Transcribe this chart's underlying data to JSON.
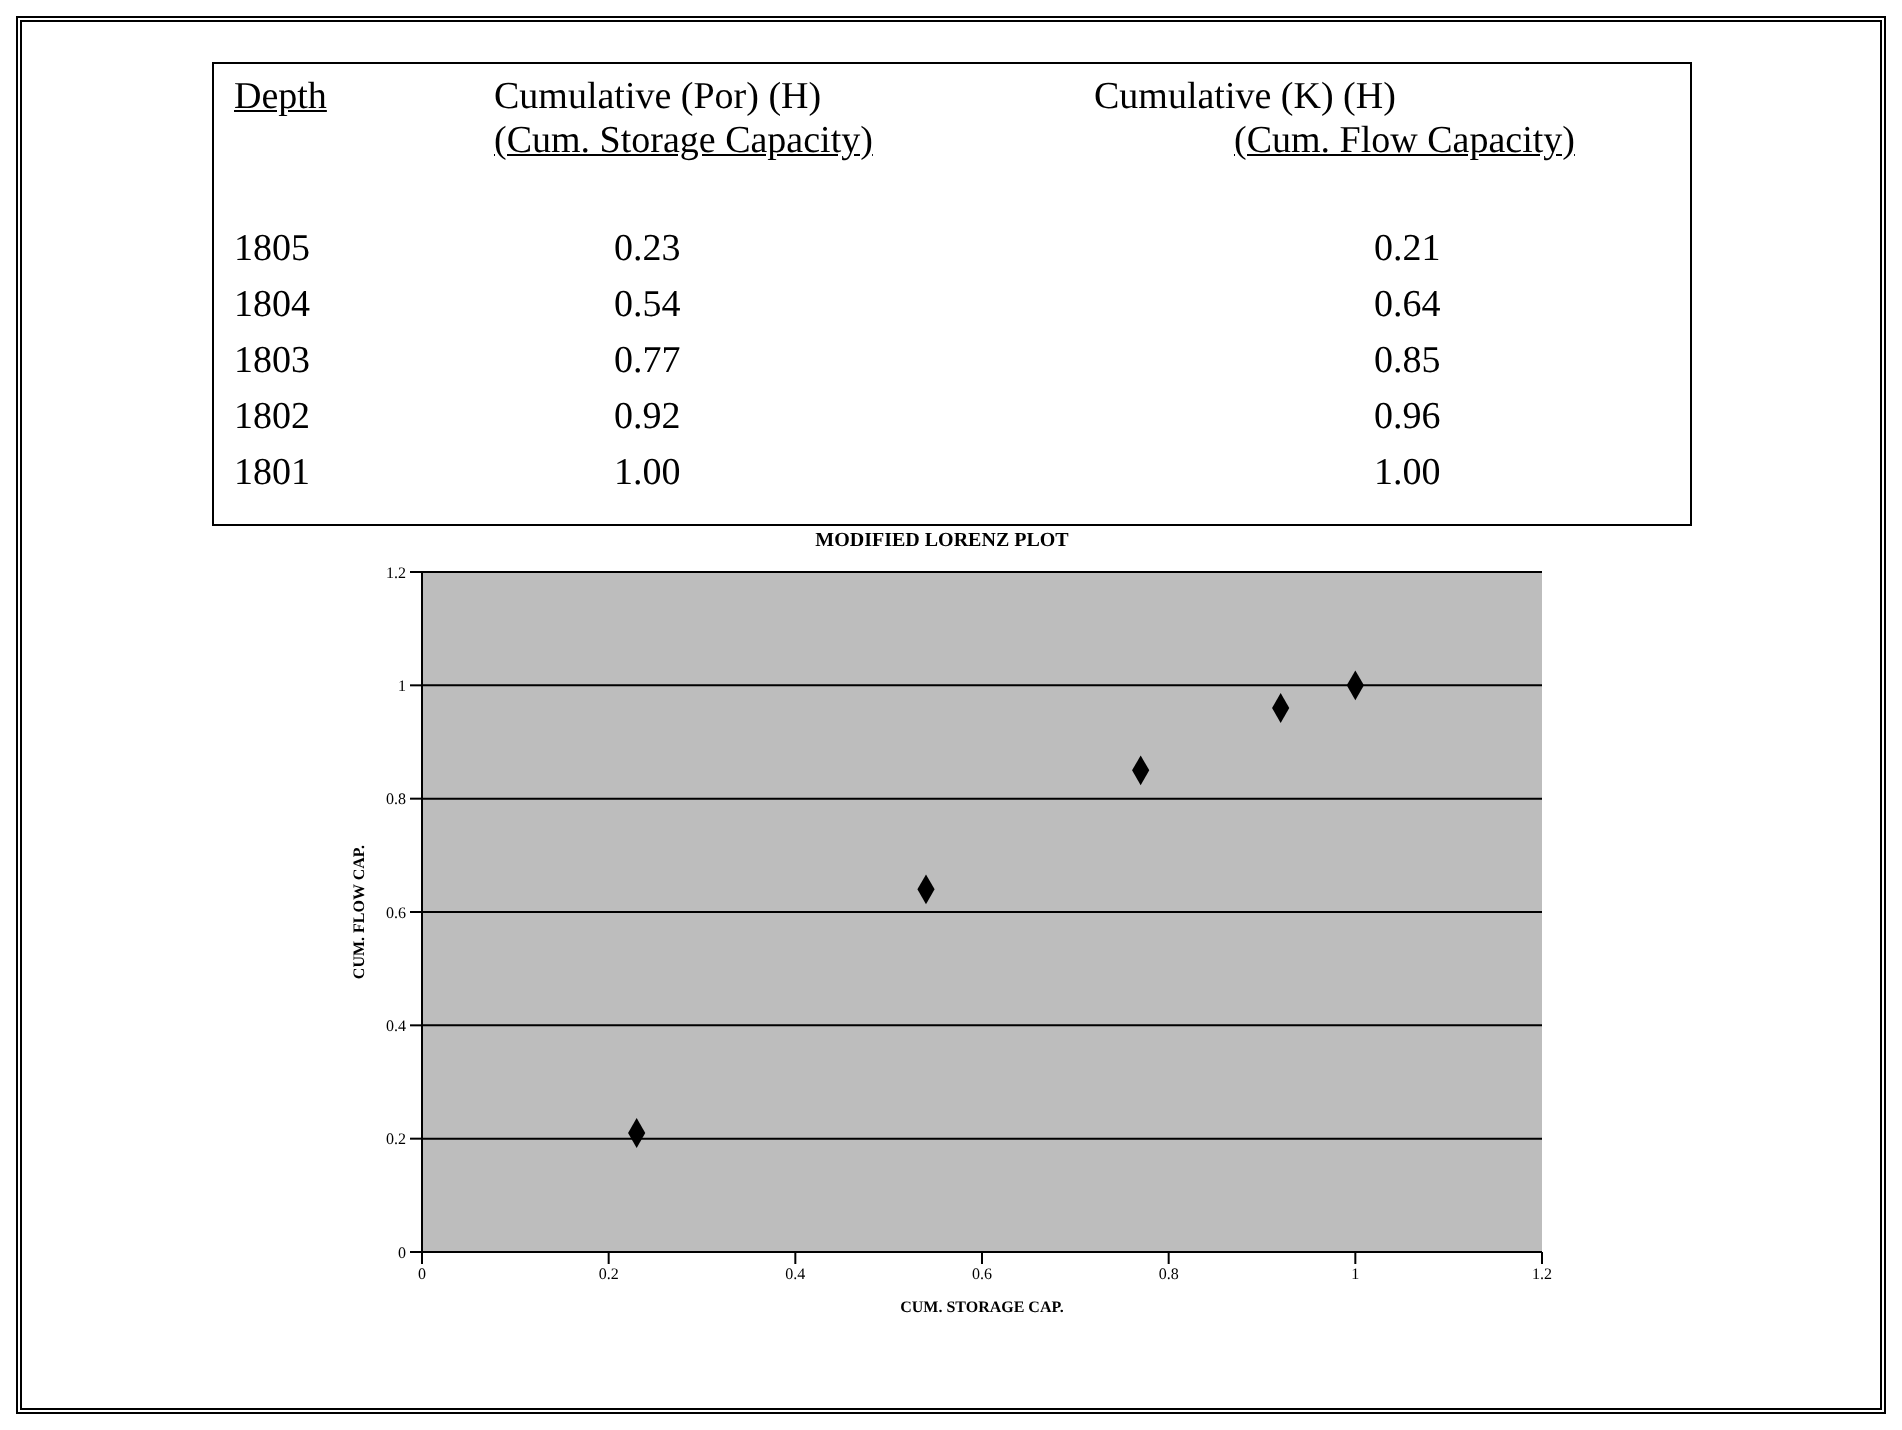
{
  "chart_data": [
    {
      "type": "other",
      "annotations": [
        "Depth",
        "Cumulative (Por) (H)",
        "(Cum. Storage Capacity)",
        "Cumulative (K) (H)",
        "(Cum. Flow Capacity)",
        "1805",
        "0.23",
        "0.21",
        "1804",
        "0.54",
        "0.64",
        "1803",
        "0.77",
        "0.85",
        "1802",
        "0.92",
        "0.96",
        "1801",
        "1.00",
        "1.00"
      ]
    },
    {
      "type": "scatter",
      "title": "MODIFIED LORENZ PLOT",
      "xlabel": "CUM. STORAGE CAP.",
      "ylabel": "CUM. FLOW CAP.",
      "x": [
        0.23,
        0.54,
        0.77,
        0.92,
        1.0
      ],
      "series": [
        {
          "color": "#000000",
          "values": [
            0.21,
            0.64,
            0.85,
            0.96,
            1.0
          ]
        }
      ],
      "xlim": [
        0,
        1.2
      ],
      "xticks": [
        0,
        0.2,
        0.4,
        0.6,
        0.8,
        1,
        1.2
      ],
      "ylim": [
        0,
        1.2
      ],
      "yticks": [
        0,
        0.2,
        0.4,
        0.6,
        0.8,
        1,
        1.2
      ],
      "grid": "y",
      "marker": "diamond",
      "legend": false
    }
  ]
}
